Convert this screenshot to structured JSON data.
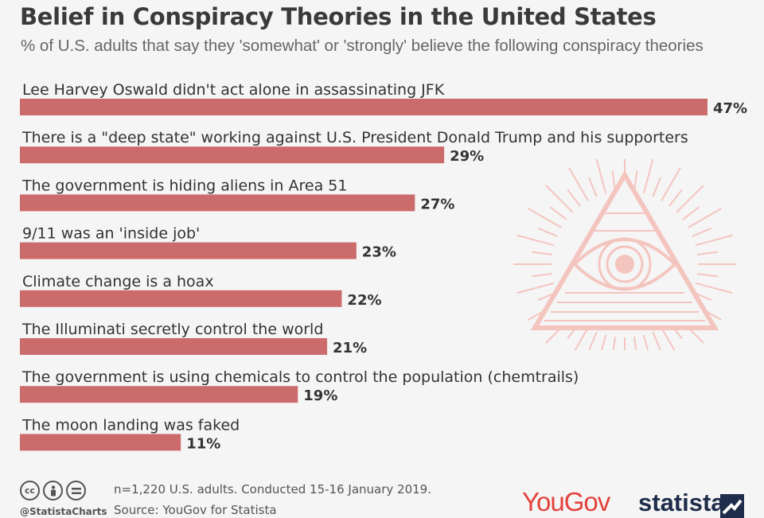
{
  "header": {
    "title": "Belief in Conspiracy Theories in the United States",
    "subtitle": "% of U.S. adults that say they 'somewhat' or 'strongly' believe the following conspiracy theories"
  },
  "chart_data": {
    "type": "bar",
    "orientation": "horizontal",
    "categories": [
      "Lee Harvey Oswald didn't act alone in assassinating JFK",
      "There is a \"deep state\" working against U.S. President Donald Trump and his supporters",
      "The government is hiding aliens in Area 51",
      "9/11 was an 'inside job'",
      "Climate change is a hoax",
      "The Illuminati secretly control the world",
      "The government is using chemicals to control the population (chemtrails)",
      "The moon landing was faked"
    ],
    "values": [
      47,
      29,
      27,
      23,
      22,
      21,
      19,
      11
    ],
    "value_labels": [
      "47%",
      "29%",
      "27%",
      "23%",
      "22%",
      "21%",
      "19%",
      "11%"
    ],
    "xlim": [
      0,
      47
    ],
    "grid": false,
    "legend": "none"
  },
  "footer": {
    "note": "n=1,220 U.S. adults. Conducted 15-16 January 2019.",
    "source": "Source: YouGov for Statista",
    "handle": "@StatistaCharts"
  },
  "branding": {
    "yougov": "YouGov",
    "statista": "statista"
  },
  "icons": {
    "cc": "creative-commons-icon",
    "by": "attribution-icon",
    "nd": "no-derivatives-icon",
    "illustration": "all-seeing-eye-pyramid-icon"
  },
  "colors": {
    "bar": "#cc6b6c",
    "illustration": "#f4c5bf",
    "yougov": "#e4413c",
    "statista": "#1f2d4a"
  }
}
